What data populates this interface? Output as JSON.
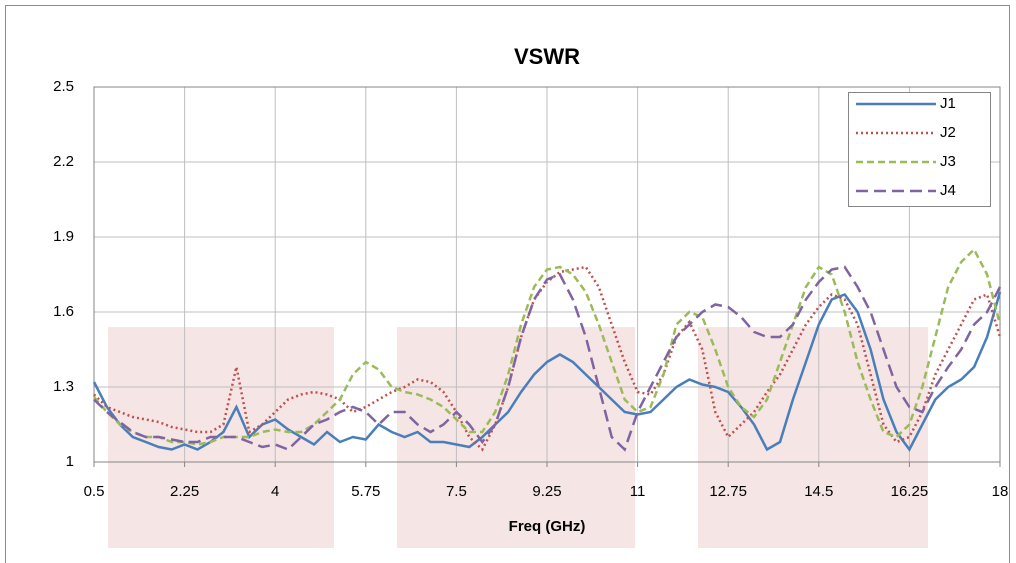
{
  "chart_data": {
    "type": "line",
    "title": "VSWR",
    "x_label": "Freq (GHz)",
    "x": [
      0.5,
      0.75,
      1,
      1.25,
      1.5,
      1.75,
      2,
      2.25,
      2.5,
      2.75,
      3,
      3.25,
      3.5,
      3.75,
      4,
      4.25,
      4.5,
      4.75,
      5,
      5.25,
      5.5,
      5.75,
      6,
      6.25,
      6.5,
      6.75,
      7,
      7.25,
      7.5,
      7.75,
      8,
      8.25,
      8.5,
      8.75,
      9,
      9.25,
      9.5,
      9.75,
      10,
      10.25,
      10.5,
      10.75,
      11,
      11.25,
      11.5,
      11.75,
      12,
      12.25,
      12.5,
      12.75,
      13,
      13.25,
      13.5,
      13.75,
      14,
      14.25,
      14.5,
      14.75,
      15,
      15.25,
      15.5,
      15.75,
      16,
      16.25,
      16.5,
      16.75,
      17,
      17.25,
      17.5,
      17.75,
      18
    ],
    "series": [
      {
        "name": "J1",
        "color": "#4a7ebb",
        "style": "solid",
        "values": [
          1.32,
          1.22,
          1.15,
          1.1,
          1.08,
          1.06,
          1.05,
          1.07,
          1.05,
          1.08,
          1.12,
          1.22,
          1.1,
          1.15,
          1.17,
          1.13,
          1.1,
          1.07,
          1.12,
          1.08,
          1.1,
          1.09,
          1.15,
          1.12,
          1.1,
          1.12,
          1.08,
          1.08,
          1.07,
          1.06,
          1.1,
          1.15,
          1.2,
          1.28,
          1.35,
          1.4,
          1.43,
          1.4,
          1.35,
          1.3,
          1.25,
          1.2,
          1.19,
          1.2,
          1.25,
          1.3,
          1.33,
          1.31,
          1.3,
          1.28,
          1.22,
          1.15,
          1.05,
          1.08,
          1.25,
          1.4,
          1.55,
          1.65,
          1.67,
          1.6,
          1.45,
          1.25,
          1.12,
          1.05,
          1.15,
          1.25,
          1.3,
          1.33,
          1.38,
          1.5,
          1.68
        ]
      },
      {
        "name": "J2",
        "color": "#c0504d",
        "style": "dotted",
        "values": [
          1.27,
          1.22,
          1.2,
          1.18,
          1.17,
          1.16,
          1.14,
          1.13,
          1.12,
          1.12,
          1.15,
          1.38,
          1.12,
          1.15,
          1.2,
          1.25,
          1.27,
          1.28,
          1.27,
          1.25,
          1.2,
          1.22,
          1.25,
          1.28,
          1.3,
          1.33,
          1.32,
          1.28,
          1.2,
          1.1,
          1.05,
          1.15,
          1.3,
          1.5,
          1.65,
          1.72,
          1.76,
          1.77,
          1.78,
          1.7,
          1.55,
          1.4,
          1.28,
          1.27,
          1.35,
          1.5,
          1.56,
          1.45,
          1.2,
          1.1,
          1.15,
          1.2,
          1.28,
          1.35,
          1.45,
          1.55,
          1.62,
          1.67,
          1.65,
          1.55,
          1.35,
          1.15,
          1.08,
          1.1,
          1.2,
          1.35,
          1.45,
          1.55,
          1.65,
          1.67,
          1.5
        ]
      },
      {
        "name": "J3",
        "color": "#9bbb59",
        "style": "dashed",
        "values": [
          1.26,
          1.2,
          1.15,
          1.12,
          1.1,
          1.1,
          1.08,
          1.08,
          1.07,
          1.08,
          1.1,
          1.1,
          1.1,
          1.12,
          1.13,
          1.12,
          1.12,
          1.15,
          1.2,
          1.25,
          1.35,
          1.4,
          1.37,
          1.3,
          1.28,
          1.27,
          1.25,
          1.22,
          1.17,
          1.12,
          1.12,
          1.2,
          1.35,
          1.55,
          1.7,
          1.77,
          1.78,
          1.75,
          1.68,
          1.55,
          1.4,
          1.25,
          1.2,
          1.22,
          1.35,
          1.55,
          1.6,
          1.58,
          1.45,
          1.3,
          1.22,
          1.18,
          1.25,
          1.4,
          1.55,
          1.7,
          1.78,
          1.75,
          1.6,
          1.4,
          1.25,
          1.12,
          1.1,
          1.15,
          1.3,
          1.5,
          1.7,
          1.8,
          1.85,
          1.75,
          1.55
        ]
      },
      {
        "name": "J4",
        "color": "#8064a2",
        "style": "longdash",
        "values": [
          1.25,
          1.2,
          1.16,
          1.12,
          1.1,
          1.1,
          1.09,
          1.08,
          1.08,
          1.1,
          1.1,
          1.1,
          1.08,
          1.06,
          1.07,
          1.05,
          1.1,
          1.15,
          1.17,
          1.2,
          1.22,
          1.2,
          1.15,
          1.2,
          1.2,
          1.15,
          1.12,
          1.15,
          1.2,
          1.15,
          1.08,
          1.15,
          1.3,
          1.5,
          1.65,
          1.73,
          1.75,
          1.65,
          1.5,
          1.3,
          1.1,
          1.05,
          1.2,
          1.3,
          1.4,
          1.5,
          1.55,
          1.6,
          1.63,
          1.62,
          1.58,
          1.52,
          1.5,
          1.5,
          1.55,
          1.65,
          1.72,
          1.77,
          1.78,
          1.7,
          1.6,
          1.45,
          1.3,
          1.22,
          1.2,
          1.3,
          1.38,
          1.45,
          1.55,
          1.6,
          1.7
        ]
      }
    ],
    "xlim": [
      0.5,
      18
    ],
    "xticks": [
      0.5,
      2.25,
      4,
      5.75,
      7.5,
      9.25,
      11,
      12.75,
      14.5,
      16.25,
      18
    ],
    "ylim": [
      1,
      2.5
    ],
    "yticks": [
      1,
      1.3,
      1.6,
      1.9,
      2.2,
      2.5
    ],
    "grid": true,
    "legend": "upper right"
  }
}
